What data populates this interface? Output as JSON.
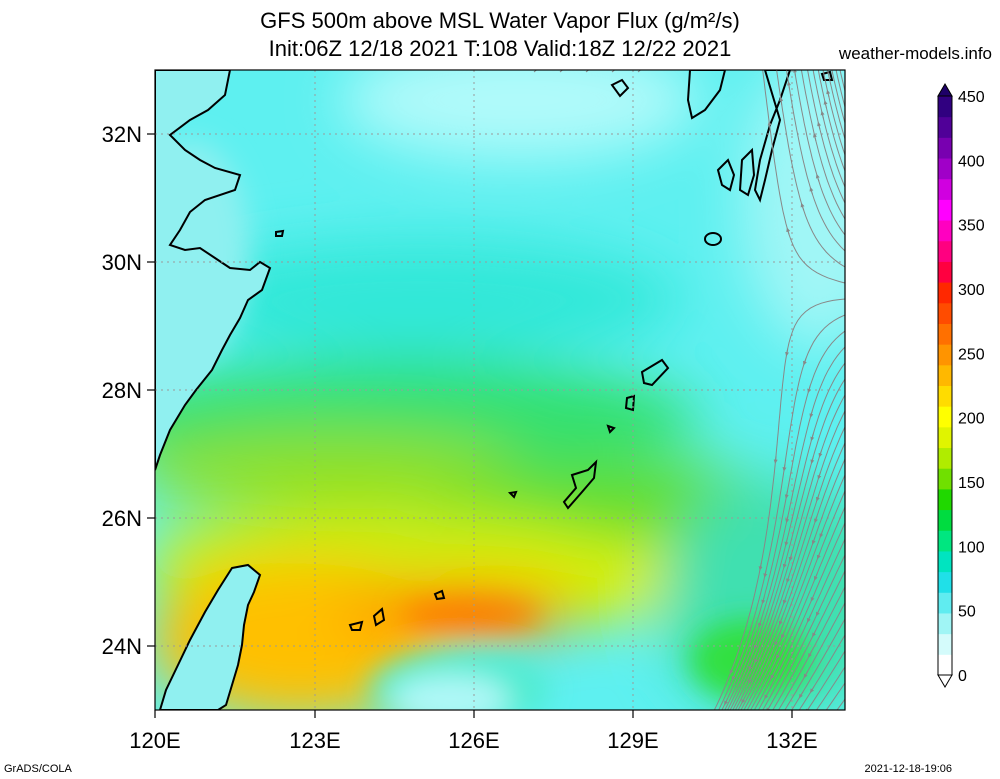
{
  "title_line1": "GFS 500m above MSL Water Vapor Flux (g/m²/s)",
  "title_line2": "Init:06Z 12/18 2021 T:108 Valid:18Z 12/22 2021",
  "site": "weather-models.info",
  "footer_left": "GrADS/COLA",
  "footer_right": "2021-12-18-19:06",
  "lon_labels": [
    "120E",
    "123E",
    "126E",
    "129E",
    "132E"
  ],
  "lat_labels": [
    "32N",
    "30N",
    "28N",
    "26N",
    "24N"
  ],
  "colorbar": {
    "labels": [
      "0",
      "50",
      "100",
      "150",
      "200",
      "250",
      "300",
      "350",
      "400",
      "450"
    ],
    "colors": [
      "#ffffff",
      "#d4fbfb",
      "#a0f5f5",
      "#60ecf0",
      "#20e0e8",
      "#00e4c0",
      "#00e680",
      "#00dc40",
      "#20d800",
      "#70e000",
      "#b0ec00",
      "#e0f400",
      "#ffff00",
      "#ffdc00",
      "#ffb800",
      "#ff9400",
      "#ff7000",
      "#ff4c00",
      "#ff2800",
      "#ff0040",
      "#ff0080",
      "#ff00c0",
      "#ff00ff",
      "#d000e0",
      "#a000c8",
      "#7800b0",
      "#500098",
      "#300080"
    ]
  },
  "colors": {
    "land": "#90f0f0",
    "coast": "#000000",
    "stream": "#888888"
  }
}
